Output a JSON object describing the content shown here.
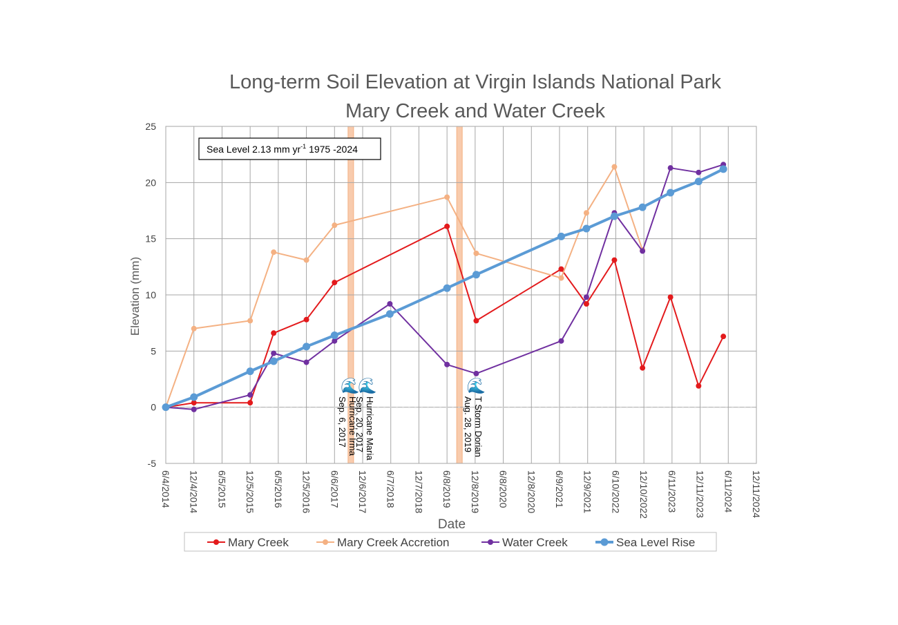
{
  "chart_data": {
    "type": "line",
    "title": [
      "Long-term Soil Elevation at Virgin Islands National Park",
      "Mary Creek and Water Creek"
    ],
    "xlabel": "Date",
    "ylabel": "Elevation (mm)",
    "xlim": [
      "2014-06-04",
      "2024-12-11"
    ],
    "ylim": [
      -5,
      25
    ],
    "y_ticks": [
      -5,
      0,
      5,
      10,
      15,
      20,
      25
    ],
    "x_ticks": [
      {
        "date": "2014-06-04",
        "label": "6/4/2014"
      },
      {
        "date": "2014-12-04",
        "label": "12/4/2014"
      },
      {
        "date": "2015-06-05",
        "label": "6/5/2015"
      },
      {
        "date": "2015-12-05",
        "label": "12/5/2015"
      },
      {
        "date": "2016-06-05",
        "label": "6/5/2016"
      },
      {
        "date": "2016-12-05",
        "label": "12/5/2016"
      },
      {
        "date": "2017-06-06",
        "label": "6/6/2017"
      },
      {
        "date": "2017-12-06",
        "label": "12/6/2017"
      },
      {
        "date": "2018-06-07",
        "label": "6/7/2018"
      },
      {
        "date": "2018-12-07",
        "label": "12/7/2018"
      },
      {
        "date": "2019-06-08",
        "label": "6/8/2019"
      },
      {
        "date": "2019-12-08",
        "label": "12/8/2019"
      },
      {
        "date": "2020-06-08",
        "label": "6/8/2020"
      },
      {
        "date": "2020-12-08",
        "label": "12/8/2020"
      },
      {
        "date": "2021-06-09",
        "label": "6/9/2021"
      },
      {
        "date": "2021-12-09",
        "label": "12/9/2021"
      },
      {
        "date": "2022-06-10",
        "label": "6/10/2022"
      },
      {
        "date": "2022-12-10",
        "label": "12/10/2022"
      },
      {
        "date": "2023-06-11",
        "label": "6/11/2023"
      },
      {
        "date": "2023-12-11",
        "label": "12/11/2023"
      },
      {
        "date": "2024-06-11",
        "label": "6/11/2024"
      },
      {
        "date": "2024-12-11",
        "label": "12/11/2024"
      }
    ],
    "grid": true,
    "legend_position": "bottom",
    "annotation_box": {
      "text": "Sea Level 2.13 mm yr",
      "sup": "-1",
      "text_after": " 1975 -2024"
    },
    "events": [
      {
        "date": "2017-09-06",
        "name": "Hurricane Irma",
        "date_text": "Sep. 6, 2017",
        "show_band": false
      },
      {
        "date": "2017-09-20",
        "name": "Hurricane Maria",
        "date_text": "Sep. 20, 2017",
        "show_band": true
      },
      {
        "date": "2019-08-28",
        "name": "T Storm Dorian",
        "date_text": "Aug. 28, 2019",
        "show_band": true
      }
    ],
    "series": [
      {
        "name": "Mary Creek",
        "color": "#E31A1C",
        "line_width": 2,
        "marker_radius": 4,
        "points": [
          {
            "x": "2014-06-04",
            "y": 0
          },
          {
            "x": "2014-12-04",
            "y": 0.4
          },
          {
            "x": "2015-12-05",
            "y": 0.4
          },
          {
            "x": "2016-05-06",
            "y": 6.6
          },
          {
            "x": "2016-12-05",
            "y": 7.8
          },
          {
            "x": "2017-06-06",
            "y": 11.1
          },
          {
            "x": "2019-06-08",
            "y": 16.1
          },
          {
            "x": "2019-12-15",
            "y": 7.7
          },
          {
            "x": "2021-06-20",
            "y": 12.3
          },
          {
            "x": "2021-12-01",
            "y": 9.2
          },
          {
            "x": "2022-06-01",
            "y": 13.1
          },
          {
            "x": "2022-12-01",
            "y": 3.5
          },
          {
            "x": "2023-06-01",
            "y": 9.8
          },
          {
            "x": "2023-12-01",
            "y": 1.9
          },
          {
            "x": "2024-05-10",
            "y": 6.3
          }
        ]
      },
      {
        "name": "Mary Creek Accretion",
        "color": "#F4B183",
        "line_width": 2,
        "marker_radius": 4,
        "points": [
          {
            "x": "2014-06-04",
            "y": 0
          },
          {
            "x": "2014-12-04",
            "y": 7.0
          },
          {
            "x": "2015-12-05",
            "y": 7.7
          },
          {
            "x": "2016-05-06",
            "y": 13.8
          },
          {
            "x": "2016-12-05",
            "y": 13.1
          },
          {
            "x": "2017-06-06",
            "y": 16.2
          },
          {
            "x": "2019-06-08",
            "y": 18.7
          },
          {
            "x": "2019-12-15",
            "y": 13.7
          },
          {
            "x": "2021-06-20",
            "y": 11.5
          },
          {
            "x": "2021-12-01",
            "y": 17.3
          },
          {
            "x": "2022-06-01",
            "y": 21.4
          },
          {
            "x": "2022-12-01",
            "y": 14.0
          }
        ]
      },
      {
        "name": "Water Creek",
        "color": "#7030A0",
        "line_width": 2,
        "marker_radius": 4,
        "points": [
          {
            "x": "2014-06-04",
            "y": 0
          },
          {
            "x": "2014-12-04",
            "y": -0.2
          },
          {
            "x": "2015-12-05",
            "y": 1.1
          },
          {
            "x": "2016-05-06",
            "y": 4.8
          },
          {
            "x": "2016-12-05",
            "y": 4.0
          },
          {
            "x": "2017-06-06",
            "y": 5.9
          },
          {
            "x": "2018-06-01",
            "y": 9.2
          },
          {
            "x": "2019-06-08",
            "y": 3.8
          },
          {
            "x": "2019-12-15",
            "y": 3.0
          },
          {
            "x": "2021-06-20",
            "y": 5.9
          },
          {
            "x": "2021-12-01",
            "y": 9.8
          },
          {
            "x": "2022-06-01",
            "y": 17.3
          },
          {
            "x": "2022-12-01",
            "y": 13.9
          },
          {
            "x": "2023-06-01",
            "y": 21.3
          },
          {
            "x": "2023-12-01",
            "y": 20.9
          },
          {
            "x": "2024-05-10",
            "y": 21.6
          }
        ]
      },
      {
        "name": "Sea Level Rise",
        "color": "#5B9BD5",
        "line_width": 4,
        "marker_radius": 5.5,
        "points": [
          {
            "x": "2014-06-04",
            "y": 0
          },
          {
            "x": "2014-12-04",
            "y": 0.9
          },
          {
            "x": "2015-12-05",
            "y": 3.2
          },
          {
            "x": "2016-05-06",
            "y": 4.1
          },
          {
            "x": "2016-12-05",
            "y": 5.4
          },
          {
            "x": "2017-06-06",
            "y": 6.4
          },
          {
            "x": "2018-06-01",
            "y": 8.3
          },
          {
            "x": "2019-06-08",
            "y": 10.6
          },
          {
            "x": "2019-12-15",
            "y": 11.8
          },
          {
            "x": "2021-06-20",
            "y": 15.2
          },
          {
            "x": "2021-12-01",
            "y": 15.9
          },
          {
            "x": "2022-06-01",
            "y": 17.0
          },
          {
            "x": "2022-12-01",
            "y": 17.8
          },
          {
            "x": "2023-06-01",
            "y": 19.1
          },
          {
            "x": "2023-12-01",
            "y": 20.1
          },
          {
            "x": "2024-05-10",
            "y": 21.2
          }
        ]
      }
    ]
  }
}
